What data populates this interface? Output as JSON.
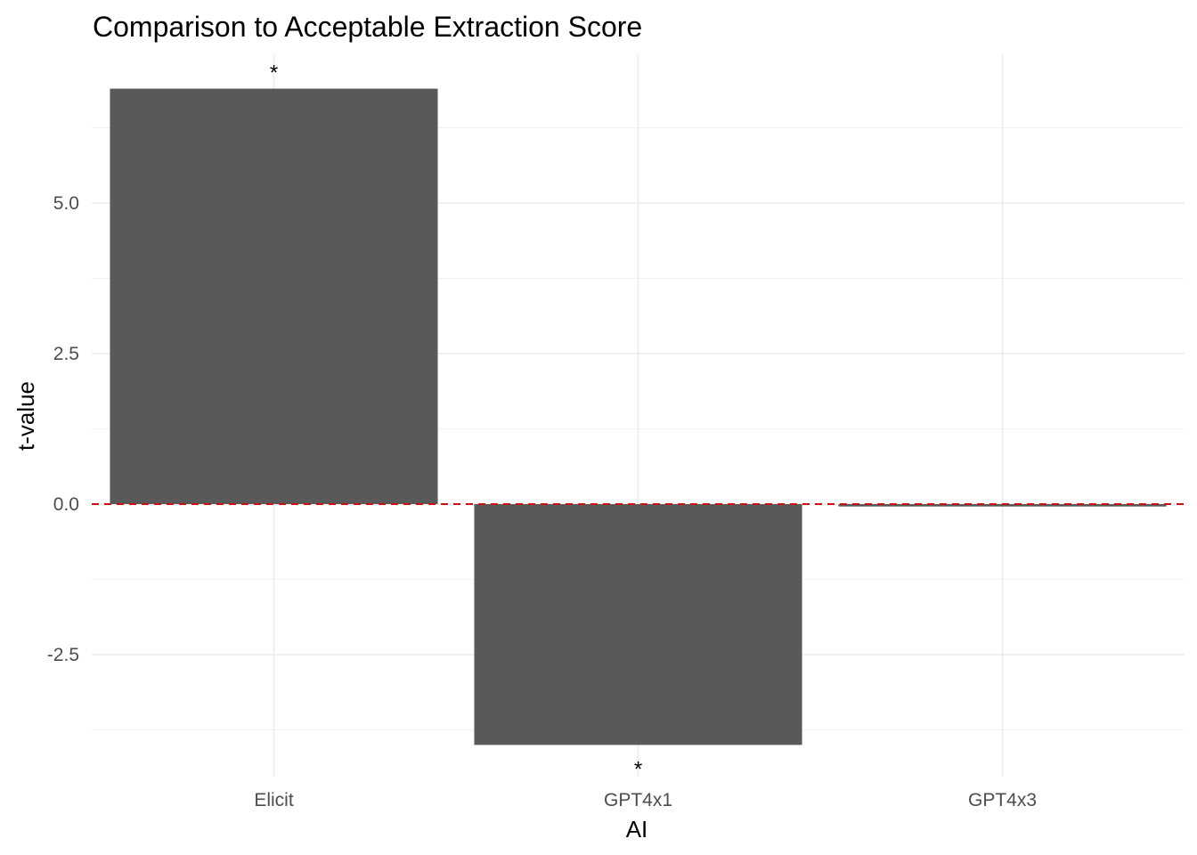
{
  "chart_data": {
    "type": "bar",
    "title": "Comparison to Acceptable Extraction Score",
    "xlabel": "AI",
    "ylabel": "t-value",
    "categories": [
      "Elicit",
      "GPT4x1",
      "GPT4x3"
    ],
    "values": [
      6.9,
      -4.0,
      -0.04
    ],
    "annotations": [
      "*",
      "*",
      ""
    ],
    "ylim": [
      -4.5,
      7.5
    ],
    "yticks": [
      -2.5,
      0.0,
      2.5,
      5.0
    ],
    "ytick_labels": [
      "-2.5",
      "0.0",
      "2.5",
      "5.0"
    ],
    "reference_line": {
      "y": 0,
      "style": "dashed",
      "color": "#cc1111"
    },
    "bar_color": "#595959",
    "grid": true,
    "legend": "none"
  }
}
